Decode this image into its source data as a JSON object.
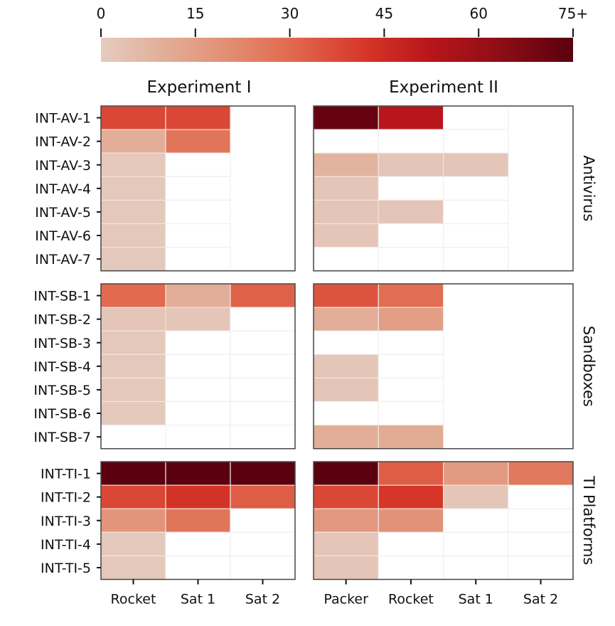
{
  "chart_data": {
    "type": "heatmap",
    "colorbar": {
      "ticks": [
        "0",
        "15",
        "30",
        "45",
        "60",
        "75+"
      ],
      "tick_values": [
        0,
        15,
        30,
        45,
        60,
        75
      ],
      "range": [
        0,
        75
      ],
      "stops": [
        {
          "v": 0,
          "color": "#e4cbc0"
        },
        {
          "v": 10,
          "color": "#e2ae98"
        },
        {
          "v": 20,
          "color": "#e28f74"
        },
        {
          "v": 30,
          "color": "#e16a4f"
        },
        {
          "v": 42,
          "color": "#d63627"
        },
        {
          "v": 52,
          "color": "#b9161c"
        },
        {
          "v": 62,
          "color": "#930f16"
        },
        {
          "v": 75,
          "color": "#5a000e"
        }
      ],
      "zero_color": "#ffffff"
    },
    "experiments": [
      {
        "title": "Experiment I",
        "columns": [
          "Rocket",
          "Sat 1",
          "Sat 2"
        ]
      },
      {
        "title": "Experiment II",
        "columns": [
          "Packer",
          "Rocket",
          "Sat 1",
          "Sat 2"
        ]
      }
    ],
    "groups": [
      {
        "name": "Antivirus",
        "rows": [
          "INT-AV-1",
          "INT-AV-2",
          "INT-AV-3",
          "INT-AV-4",
          "INT-AV-5",
          "INT-AV-6",
          "INT-AV-7"
        ],
        "values": [
          [
            [
              38,
              38,
              null
            ],
            [
              10,
              27,
              null
            ],
            [
              1,
              0,
              null
            ],
            [
              1,
              0,
              null
            ],
            [
              1,
              0,
              null
            ],
            [
              1,
              0,
              null
            ],
            [
              1,
              0,
              null
            ]
          ],
          [
            [
              72,
              52,
              0,
              null
            ],
            [
              0,
              0,
              0,
              null
            ],
            [
              8,
              2,
              2,
              null
            ],
            [
              2,
              0,
              0,
              null
            ],
            [
              2,
              2,
              0,
              null
            ],
            [
              2,
              0,
              0,
              null
            ],
            [
              0,
              0,
              0,
              null
            ]
          ]
        ]
      },
      {
        "name": "Sandboxes",
        "rows": [
          "INT-SB-1",
          "INT-SB-2",
          "INT-SB-3",
          "INT-SB-4",
          "INT-SB-5",
          "INT-SB-6",
          "INT-SB-7"
        ],
        "values": [
          [
            [
              30,
              10,
              32
            ],
            [
              2,
              2,
              0
            ],
            [
              1,
              0,
              0
            ],
            [
              1,
              0,
              0
            ],
            [
              1,
              0,
              0
            ],
            [
              1,
              0,
              0
            ],
            [
              0,
              0,
              0
            ]
          ],
          [
            [
              35,
              29,
              null,
              null
            ],
            [
              10,
              15,
              null,
              null
            ],
            [
              0,
              0,
              null,
              null
            ],
            [
              2,
              0,
              null,
              null
            ],
            [
              2,
              0,
              null,
              null
            ],
            [
              0,
              0,
              null,
              null
            ],
            [
              10,
              11,
              null,
              null
            ]
          ]
        ]
      },
      {
        "name": "TI Platforms",
        "rows": [
          "INT-TI-1",
          "INT-TI-2",
          "INT-TI-3",
          "INT-TI-4",
          "INT-TI-5"
        ],
        "values": [
          [
            [
              80,
              80,
              80
            ],
            [
              38,
              43,
              33
            ],
            [
              18,
              27,
              0
            ],
            [
              1,
              0,
              0
            ],
            [
              1,
              0,
              0
            ]
          ],
          [
            [
              80,
              33,
              16,
              26
            ],
            [
              38,
              42,
              2,
              0
            ],
            [
              17,
              19,
              0,
              0
            ],
            [
              2,
              0,
              0,
              0
            ],
            [
              2,
              0,
              0,
              0
            ]
          ]
        ]
      }
    ]
  }
}
